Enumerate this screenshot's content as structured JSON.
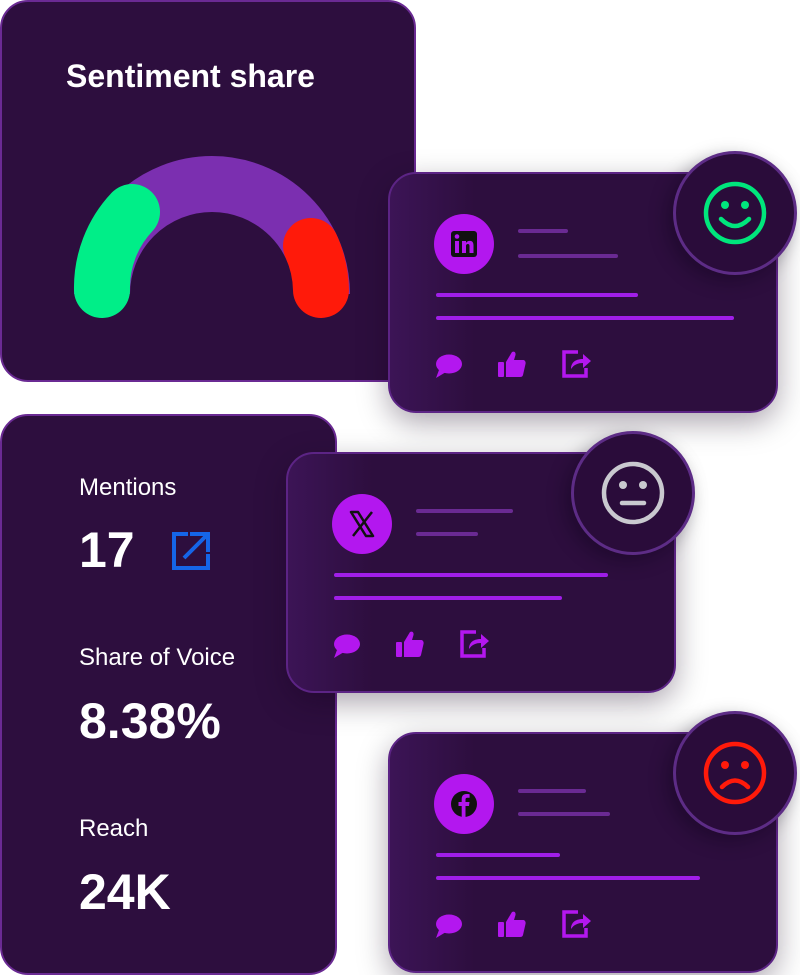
{
  "sentiment": {
    "title": "Sentiment share",
    "segments": [
      {
        "name": "positive",
        "color": "#00ee88"
      },
      {
        "name": "neutral",
        "color": "#7b2fb0"
      },
      {
        "name": "negative",
        "color": "#ff1a0a"
      }
    ]
  },
  "stats": {
    "mentions_label": "Mentions",
    "mentions_value": "17",
    "share_label": "Share of Voice",
    "share_value": "8.38%",
    "reach_label": "Reach",
    "reach_value": "24K"
  },
  "posts": [
    {
      "network": "LinkedIn",
      "avatar_text": "in",
      "sentiment": "positive",
      "face_color": "#00e67c"
    },
    {
      "network": "X",
      "avatar_text": "𝕏",
      "sentiment": "neutral",
      "face_color": "#c9c9cf"
    },
    {
      "network": "Facebook",
      "avatar_text": "f",
      "sentiment": "negative",
      "face_color": "#ff1a0a"
    }
  ],
  "icons": {
    "comment": "comment-icon",
    "like": "thumbs-up-icon",
    "share": "share-icon",
    "external": "external-link-icon"
  },
  "colors": {
    "card_bg": "#2d0e3e",
    "accent": "#b317ef",
    "link_blue": "#1565e8"
  }
}
